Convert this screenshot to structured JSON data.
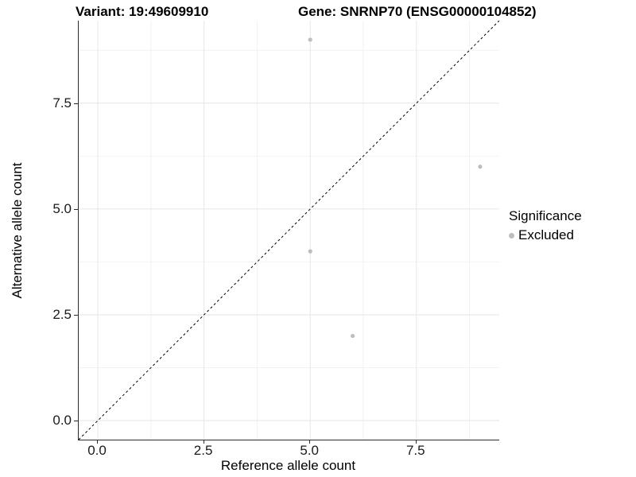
{
  "figure": {
    "title_left": "Variant: 19:49609910",
    "title_right": "Gene: SNRNP70 (ENSG00000104852)"
  },
  "axes": {
    "x": {
      "label": "Reference allele count",
      "tick_labels": [
        "0.0",
        "2.5",
        "5.0",
        "7.5"
      ],
      "tick_values": [
        0,
        2.5,
        5,
        7.5
      ]
    },
    "y": {
      "label": "Alternative allele count",
      "tick_labels": [
        "0.0",
        "2.5",
        "5.0",
        "7.5"
      ],
      "tick_values": [
        0,
        2.5,
        5,
        7.5
      ]
    }
  },
  "legend": {
    "title": "Significance",
    "items": [
      {
        "label": "Excluded",
        "color": "#bdbdbd"
      }
    ]
  },
  "chart_data": {
    "type": "scatter",
    "title": "Variant: 19:49609910 | Gene: SNRNP70 (ENSG00000104852)",
    "xlabel": "Reference allele count",
    "ylabel": "Alternative allele count",
    "xlim": [
      -0.45,
      9.45
    ],
    "ylim": [
      -0.45,
      9.45
    ],
    "x_ticks": [
      0,
      2.5,
      5,
      7.5
    ],
    "y_ticks": [
      0,
      2.5,
      5,
      7.5
    ],
    "grid": {
      "visible": true,
      "major": [
        0,
        2.5,
        5,
        7.5
      ],
      "minor": [
        1.25,
        3.75,
        6.25,
        8.75
      ]
    },
    "legend_position": "right",
    "series": [
      {
        "name": "Excluded",
        "color": "#bdbdbd",
        "points": [
          [
            5,
            9
          ],
          [
            9,
            6
          ],
          [
            5,
            4
          ],
          [
            6,
            2
          ]
        ]
      }
    ],
    "reference_line": {
      "kind": "identity y=x",
      "slope": 1,
      "intercept": 0,
      "style": "dashed",
      "color": "#000000"
    }
  },
  "colors": {
    "background": "#ffffff",
    "point": "#bdbdbd",
    "grid_major": "#e6e6e6",
    "grid_minor": "#f2f2f2",
    "axis_line": "#2b2b2b",
    "text": "#000000"
  }
}
